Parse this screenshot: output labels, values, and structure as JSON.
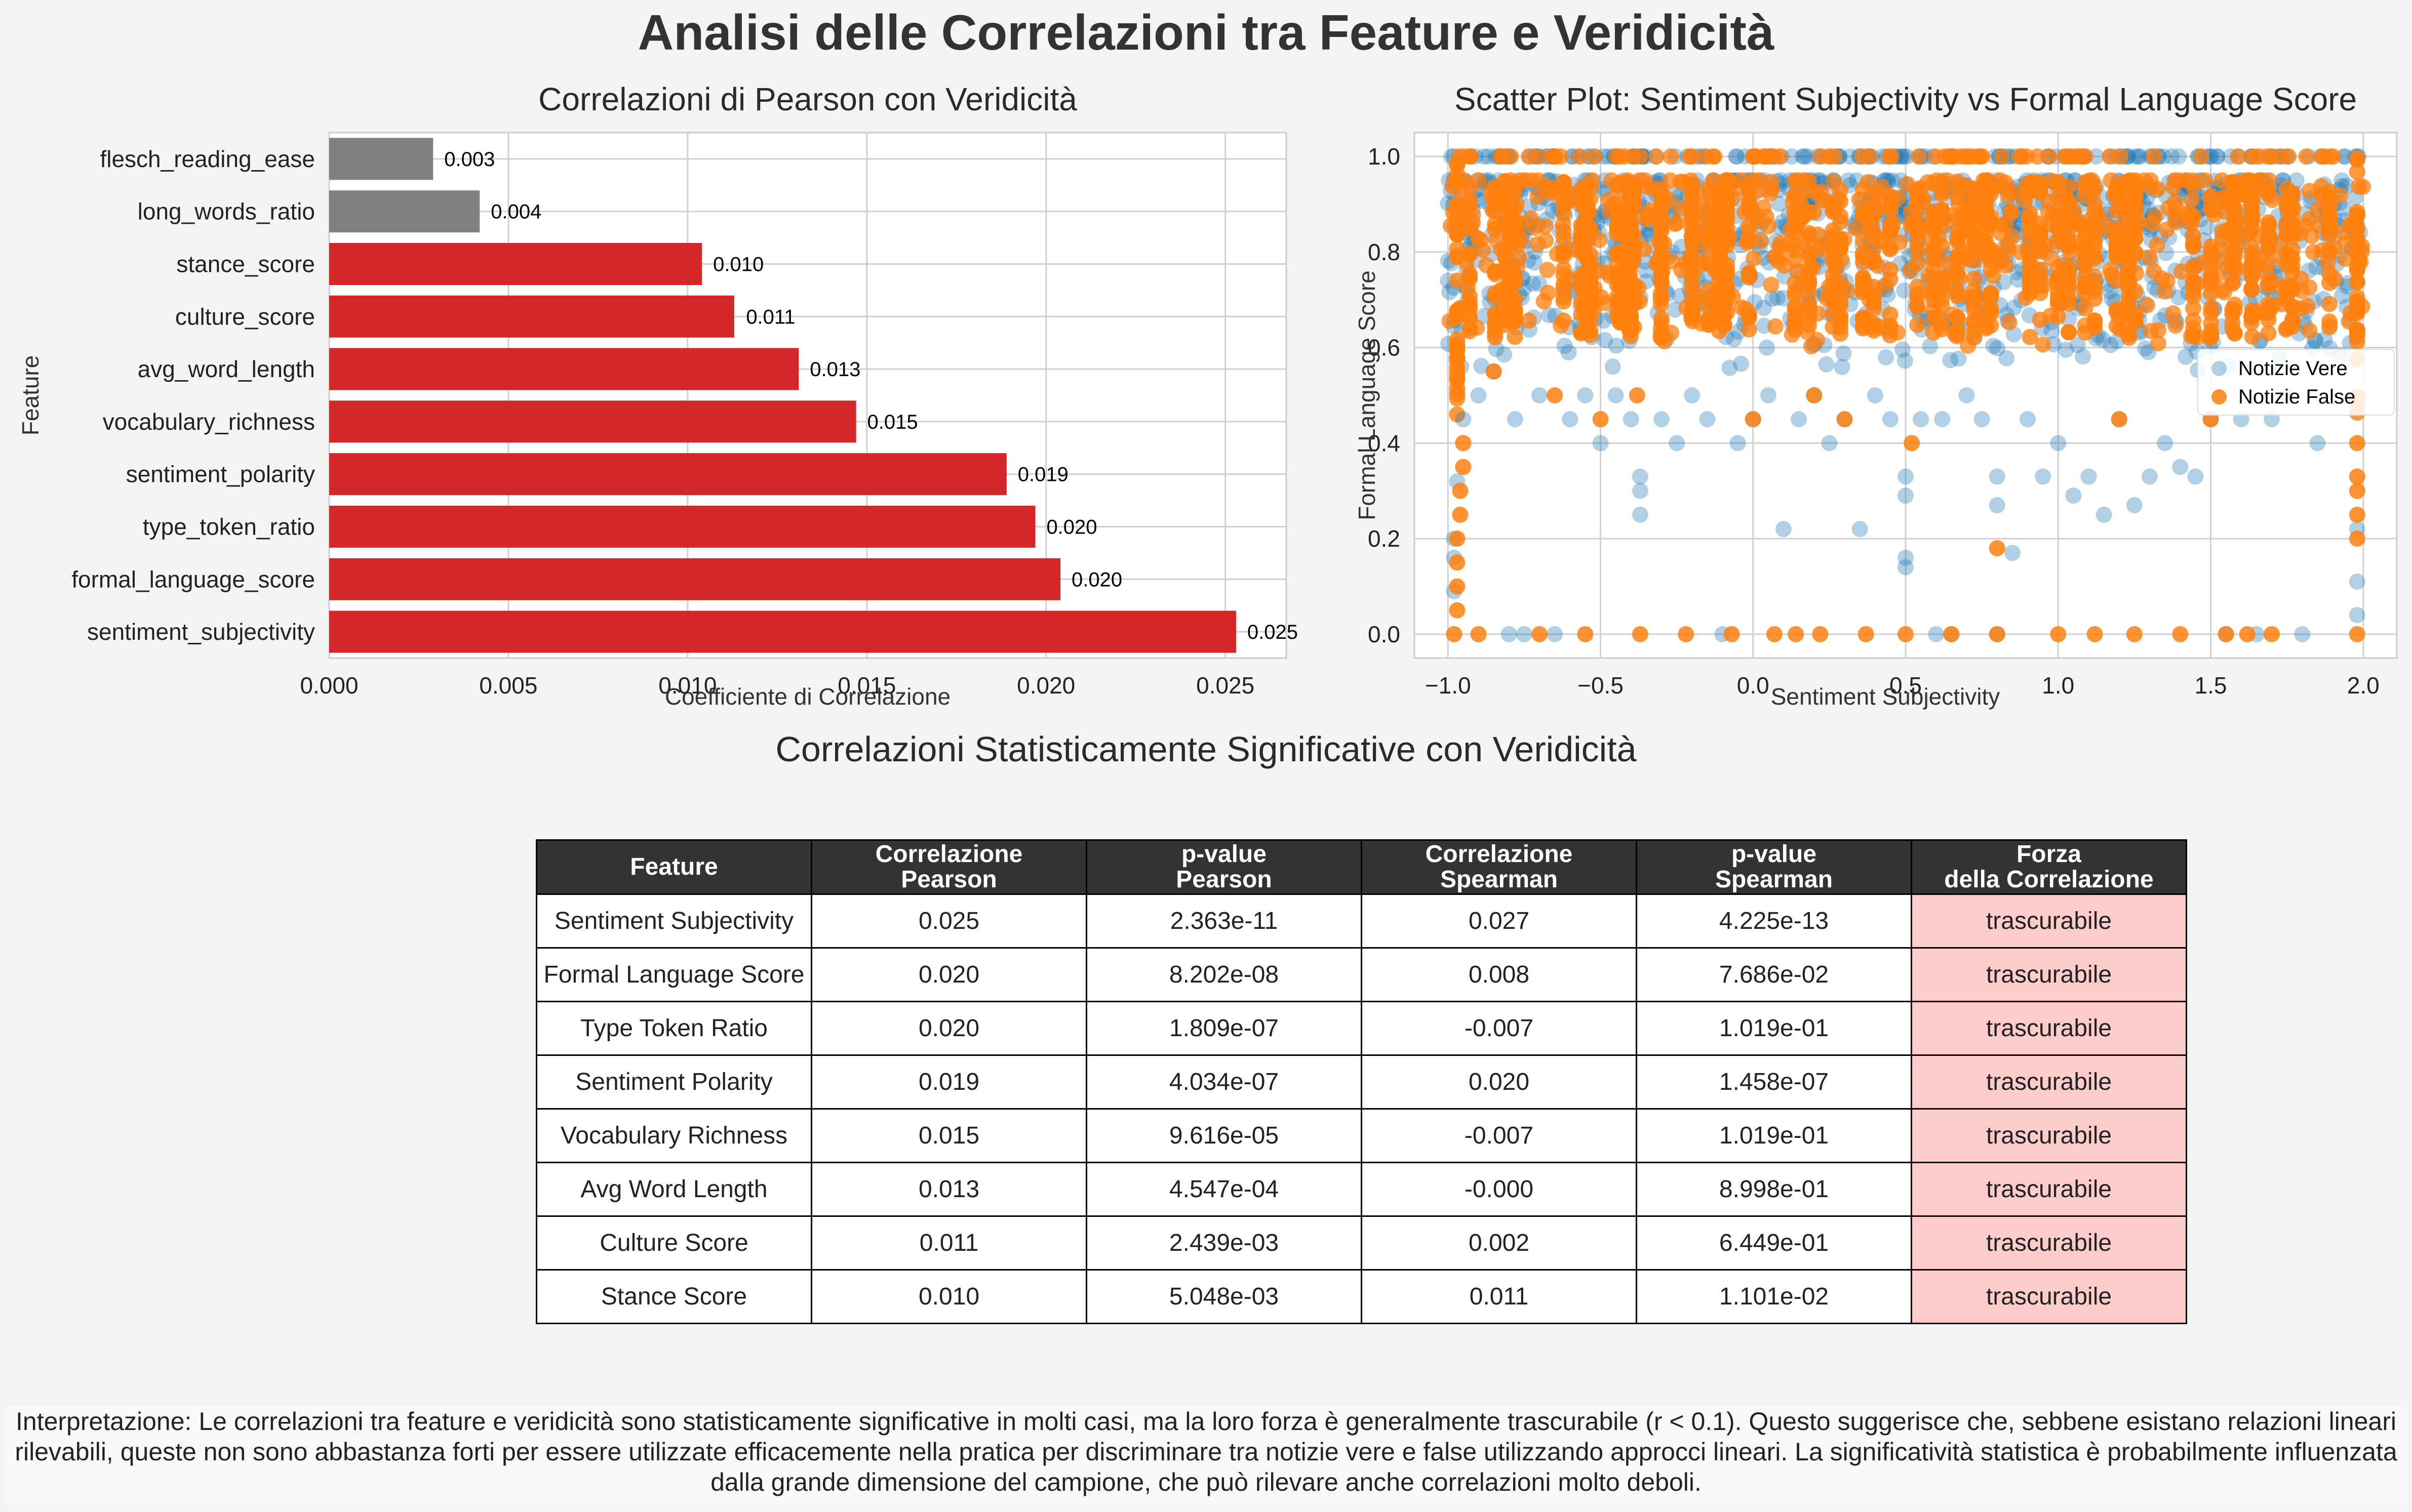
{
  "title": "Analisi delle Correlazioni tra Feature e Veridicità",
  "chart_data": [
    {
      "type": "bar",
      "orientation": "horizontal",
      "title": "Correlazioni di Pearson con Veridicità",
      "xlabel": "Coefficiente di Correlazione",
      "ylabel": "Feature",
      "xlim": [
        0,
        0.0267
      ],
      "x_ticks": [
        "0.000",
        "0.005",
        "0.010",
        "0.015",
        "0.020",
        "0.025"
      ],
      "categories": [
        "flesch_reading_ease",
        "long_words_ratio",
        "stance_score",
        "culture_score",
        "avg_word_length",
        "vocabulary_richness",
        "sentiment_polarity",
        "type_token_ratio",
        "formal_language_score",
        "sentiment_subjectivity"
      ],
      "values": [
        0.0029,
        0.0042,
        0.0104,
        0.0113,
        0.0131,
        0.0147,
        0.0189,
        0.0197,
        0.0204,
        0.0253
      ],
      "data_labels": [
        "0.003",
        "0.004",
        "0.010",
        "0.011",
        "0.013",
        "0.015",
        "0.019",
        "0.020",
        "0.020",
        "0.025"
      ],
      "bar_colors": [
        "#808080",
        "#808080",
        "#d62728",
        "#d62728",
        "#d62728",
        "#d62728",
        "#d62728",
        "#d62728",
        "#d62728",
        "#d62728"
      ],
      "grid": true
    },
    {
      "type": "scatter",
      "title": "Scatter Plot: Sentiment Subjectivity vs Formal Language Score",
      "xlabel": "Sentiment Subjectivity",
      "ylabel": "Formal Language Score",
      "xlim": [
        -1.11,
        2.11
      ],
      "ylim": [
        -0.05,
        1.05
      ],
      "x_ticks": [
        "−1.0",
        "−0.5",
        "0.0",
        "0.5",
        "1.0",
        "1.5",
        "2.0"
      ],
      "y_ticks": [
        "0.0",
        "0.2",
        "0.4",
        "0.6",
        "0.8",
        "1.0"
      ],
      "legend_position": "right",
      "grid": true,
      "series": [
        {
          "name": "Notizie Vere",
          "color": "#1f77b4",
          "points": [
            [
              -0.98,
              0.09
            ],
            [
              -0.98,
              0.16
            ],
            [
              -0.98,
              0.2
            ],
            [
              -0.97,
              0.32
            ],
            [
              -0.95,
              0.45
            ],
            [
              -0.9,
              0.5
            ],
            [
              -0.85,
              0.55
            ],
            [
              -0.8,
              0.0
            ],
            [
              -0.78,
              0.45
            ],
            [
              -0.75,
              0.0
            ],
            [
              -0.7,
              0.5
            ],
            [
              -0.65,
              0.0
            ],
            [
              -0.6,
              0.45
            ],
            [
              -0.55,
              0.5
            ],
            [
              -0.5,
              0.4
            ],
            [
              -0.45,
              0.5
            ],
            [
              -0.4,
              0.45
            ],
            [
              -0.37,
              0.25
            ],
            [
              -0.37,
              0.33
            ],
            [
              -0.37,
              0.3
            ],
            [
              -0.3,
              0.45
            ],
            [
              -0.25,
              0.4
            ],
            [
              -0.2,
              0.5
            ],
            [
              -0.15,
              0.45
            ],
            [
              -0.1,
              0.0
            ],
            [
              -0.05,
              0.4
            ],
            [
              0.0,
              0.45
            ],
            [
              0.05,
              0.5
            ],
            [
              0.1,
              0.22
            ],
            [
              0.15,
              0.45
            ],
            [
              0.2,
              0.5
            ],
            [
              0.25,
              0.4
            ],
            [
              0.3,
              0.45
            ],
            [
              0.35,
              0.22
            ],
            [
              0.4,
              0.5
            ],
            [
              0.45,
              0.45
            ],
            [
              0.5,
              0.29
            ],
            [
              0.5,
              0.33
            ],
            [
              0.5,
              0.16
            ],
            [
              0.5,
              0.14
            ],
            [
              0.55,
              0.45
            ],
            [
              0.6,
              0.0
            ],
            [
              0.62,
              0.45
            ],
            [
              0.65,
              0.0
            ],
            [
              0.7,
              0.5
            ],
            [
              0.75,
              0.45
            ],
            [
              0.8,
              0.27
            ],
            [
              0.8,
              0.33
            ],
            [
              0.8,
              0.0
            ],
            [
              0.85,
              0.17
            ],
            [
              0.9,
              0.45
            ],
            [
              0.95,
              0.33
            ],
            [
              1.0,
              0.4
            ],
            [
              1.05,
              0.29
            ],
            [
              1.1,
              0.33
            ],
            [
              1.15,
              0.25
            ],
            [
              1.2,
              0.45
            ],
            [
              1.25,
              0.27
            ],
            [
              1.3,
              0.33
            ],
            [
              1.35,
              0.4
            ],
            [
              1.4,
              0.35
            ],
            [
              1.45,
              0.33
            ],
            [
              1.5,
              0.45
            ],
            [
              1.55,
              0.0
            ],
            [
              1.6,
              0.45
            ],
            [
              1.65,
              0.0
            ],
            [
              1.7,
              0.45
            ],
            [
              1.75,
              0.5
            ],
            [
              1.8,
              0.0
            ],
            [
              1.85,
              0.4
            ],
            [
              1.98,
              0.04
            ],
            [
              1.98,
              0.11
            ],
            [
              1.98,
              0.22
            ]
          ]
        },
        {
          "name": "Notizie False",
          "color": "#ff7f0e",
          "points": [
            [
              -0.98,
              0.0
            ],
            [
              -0.97,
              0.05
            ],
            [
              -0.97,
              0.1
            ],
            [
              -0.97,
              0.15
            ],
            [
              -0.97,
              0.2
            ],
            [
              -0.96,
              0.25
            ],
            [
              -0.96,
              0.3
            ],
            [
              -0.95,
              0.35
            ],
            [
              -0.95,
              0.4
            ],
            [
              -0.9,
              0.0
            ],
            [
              -0.85,
              0.55
            ],
            [
              -0.7,
              0.0
            ],
            [
              -0.65,
              0.5
            ],
            [
              -0.55,
              0.0
            ],
            [
              -0.5,
              0.45
            ],
            [
              -0.38,
              0.5
            ],
            [
              -0.37,
              0.0
            ],
            [
              -0.22,
              0.0
            ],
            [
              -0.07,
              0.0
            ],
            [
              0.0,
              0.45
            ],
            [
              0.07,
              0.0
            ],
            [
              0.14,
              0.0
            ],
            [
              0.2,
              0.5
            ],
            [
              0.22,
              0.0
            ],
            [
              0.3,
              0.45
            ],
            [
              0.37,
              0.0
            ],
            [
              0.5,
              0.0
            ],
            [
              0.52,
              0.4
            ],
            [
              0.65,
              0.0
            ],
            [
              0.8,
              0.18
            ],
            [
              0.8,
              0.0
            ],
            [
              1.0,
              0.0
            ],
            [
              1.12,
              0.0
            ],
            [
              1.2,
              0.45
            ],
            [
              1.25,
              0.0
            ],
            [
              1.4,
              0.0
            ],
            [
              1.5,
              0.45
            ],
            [
              1.55,
              0.0
            ],
            [
              1.62,
              0.0
            ],
            [
              1.7,
              0.0
            ],
            [
              1.98,
              0.0
            ],
            [
              1.98,
              0.2
            ],
            [
              1.98,
              0.25
            ],
            [
              1.98,
              0.3
            ],
            [
              1.98,
              0.33
            ],
            [
              1.98,
              0.4
            ]
          ]
        }
      ]
    }
  ],
  "table": {
    "title": "Correlazioni Statisticamente Significative con Veridicità",
    "headers": [
      [
        "Feature"
      ],
      [
        "Correlazione",
        "Pearson"
      ],
      [
        "p-value",
        "Pearson"
      ],
      [
        "Correlazione",
        "Spearman"
      ],
      [
        "p-value",
        "Spearman"
      ],
      [
        "Forza",
        "della Correlazione"
      ]
    ],
    "rows": [
      [
        "Sentiment Subjectivity",
        "0.025",
        "2.363e-11",
        "0.027",
        "4.225e-13",
        "trascurabile"
      ],
      [
        "Formal Language Score",
        "0.020",
        "8.202e-08",
        "0.008",
        "7.686e-02",
        "trascurabile"
      ],
      [
        "Type Token Ratio",
        "0.020",
        "1.809e-07",
        "-0.007",
        "1.019e-01",
        "trascurabile"
      ],
      [
        "Sentiment Polarity",
        "0.019",
        "4.034e-07",
        "0.020",
        "1.458e-07",
        "trascurabile"
      ],
      [
        "Vocabulary Richness",
        "0.015",
        "9.616e-05",
        "-0.007",
        "1.019e-01",
        "trascurabile"
      ],
      [
        "Avg Word Length",
        "0.013",
        "4.547e-04",
        "-0.000",
        "8.998e-01",
        "trascurabile"
      ],
      [
        "Culture Score",
        "0.011",
        "2.439e-03",
        "0.002",
        "6.449e-01",
        "trascurabile"
      ],
      [
        "Stance Score",
        "0.010",
        "5.048e-03",
        "0.011",
        "1.101e-02",
        "trascurabile"
      ]
    ],
    "strength_color": "#ffcccc"
  },
  "interpretation": "Interpretazione: Le correlazioni tra feature e veridicità sono statisticamente significative in molti casi, ma la loro forza è generalmente trascurabile (r < 0.1). Questo suggerisce che, sebbene esistano relazioni lineari rilevabili, queste non sono abbastanza forti per essere utilizzate efficacemente nella pratica per discriminare tra notizie vere e false utilizzando approcci lineari. La significatività statistica è probabilmente influenzata dalla grande dimensione del campione, che può rilevare anche correlazioni molto deboli."
}
